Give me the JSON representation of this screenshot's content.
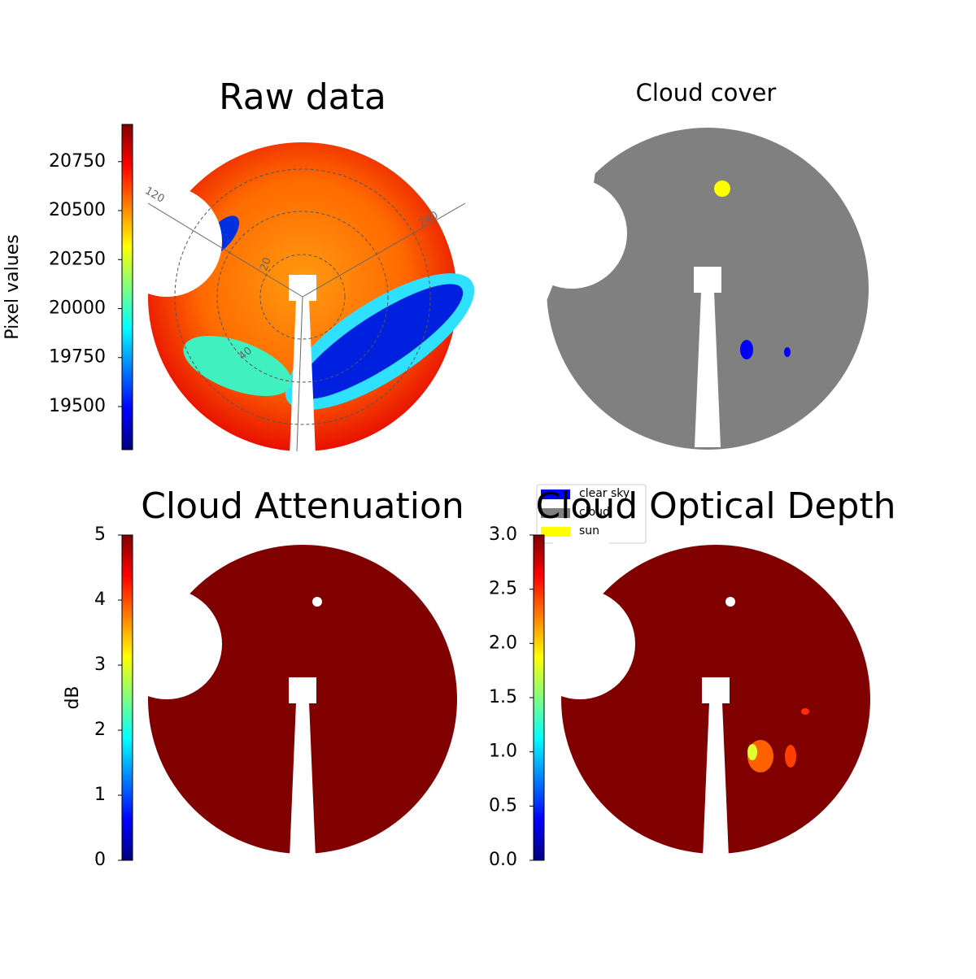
{
  "panels": [
    {
      "title": "Raw data",
      "colorbar": {
        "label": "Pixel values",
        "lim": [
          19280,
          20940
        ],
        "ticks": [
          19500,
          19750,
          20000,
          20250,
          20500,
          20750
        ]
      },
      "polar_labels": {
        "angles": [
          120,
          240
        ],
        "radii": [
          20,
          40
        ]
      }
    },
    {
      "title": "Cloud cover",
      "legend": [
        {
          "name": "clear sky",
          "color": "#0000ff"
        },
        {
          "name": "cloud",
          "color": "#808080"
        },
        {
          "name": "sun",
          "color": "#ffff00"
        }
      ]
    },
    {
      "title": "Cloud Attenuation",
      "colorbar": {
        "label": "dB",
        "lim": [
          0,
          5
        ],
        "ticks": [
          0,
          1,
          2,
          3,
          4,
          5
        ]
      }
    },
    {
      "title": "Cloud Optical Depth",
      "colorbar": {
        "lim": [
          0,
          3
        ],
        "ticks": [
          {
            "value": 0,
            "label": "0.0"
          },
          0.5,
          {
            "value": 1,
            "label": "1.0"
          },
          1.5,
          {
            "value": 2,
            "label": "2.0"
          },
          2.5,
          {
            "value": 3,
            "label": "3.0"
          }
        ]
      }
    }
  ]
}
